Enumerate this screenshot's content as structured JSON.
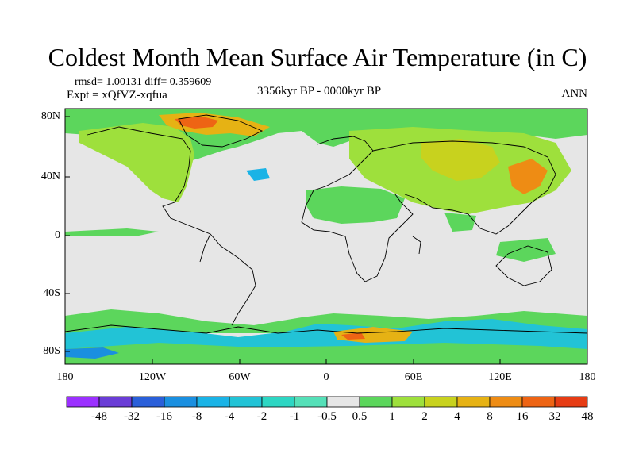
{
  "header": {
    "title": "Coldest Month Mean Surface Air Temperature (in C)",
    "rmsd": "rmsd= 1.00131 diff= 0.359609",
    "experiment": "Expt = xQfVZ-xqfua",
    "period": "3356kyr BP - 0000kyr BP",
    "season": "ANN"
  },
  "axes": {
    "lat_labels": [
      "80N",
      "40N",
      "0",
      "40S",
      "80S"
    ],
    "lon_labels": [
      "180",
      "120W",
      "60W",
      "0",
      "60E",
      "120E",
      "180"
    ]
  },
  "colorbar": {
    "labels": [
      "-48",
      "-32",
      "-16",
      "-8",
      "-4",
      "-2",
      "-1",
      "-0.5",
      "0.5",
      "1",
      "2",
      "4",
      "8",
      "16",
      "32",
      "48"
    ],
    "colors": [
      "#9b30ff",
      "#6a3dd6",
      "#2a5fd9",
      "#1a8fe0",
      "#1ab3e6",
      "#22c3d6",
      "#2dd6c3",
      "#55e0b8",
      "#e6e6e6",
      "#5cd65c",
      "#9ee03c",
      "#c8d21e",
      "#e6b214",
      "#ee8c14",
      "#ee6414",
      "#e63c14"
    ]
  },
  "map": {
    "ocean_color": "#e6e6e6",
    "coast_color": "#000000",
    "dominant_fields": [
      "green anomaly over northern continents",
      "cyan/blue anomaly over Southern Ocean",
      "orange/red patches over Arctic and East Asia"
    ]
  }
}
